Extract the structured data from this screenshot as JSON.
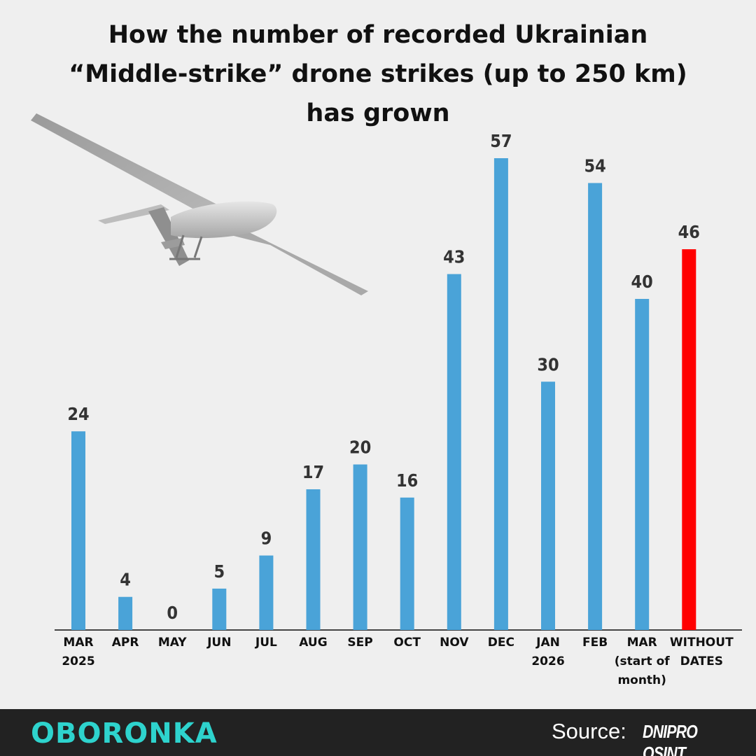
{
  "title_lines": [
    "How the number of recorded Ukrainian",
    "“Middle-strike” drone strikes (up to 250 km)",
    "has grown"
  ],
  "footer": {
    "brand": "OBORONKA",
    "source_label": "Source:",
    "source_name": "DNIPRO OSINT"
  },
  "colors": {
    "bar": "#4aa3d8",
    "highlight": "#ff0000",
    "background": "#efefef",
    "footer_bg": "#222222",
    "brand": "#2ed3cd"
  },
  "decor": {
    "drone_image": "drone-icon"
  },
  "chart_data": {
    "type": "bar",
    "title": "How the number of recorded Ukrainian “Middle-strike” drone strikes (up to 250 km) has grown",
    "categories": [
      [
        "MAR",
        "2025"
      ],
      [
        "APR"
      ],
      [
        "MAY"
      ],
      [
        "JUN"
      ],
      [
        "JUL"
      ],
      [
        "AUG"
      ],
      [
        "SEP"
      ],
      [
        "OCT"
      ],
      [
        "NOV"
      ],
      [
        "DEC"
      ],
      [
        "JAN",
        "2026"
      ],
      [
        "FEB"
      ],
      [
        "MAR",
        "(start of",
        "month)"
      ],
      [
        "WITHOUT",
        "DATES"
      ]
    ],
    "values": [
      24,
      4,
      0,
      5,
      9,
      17,
      20,
      16,
      43,
      57,
      30,
      54,
      40,
      46
    ],
    "highlight_index": 13,
    "ylim": [
      0,
      57
    ],
    "grid": false,
    "data_labels": true
  }
}
